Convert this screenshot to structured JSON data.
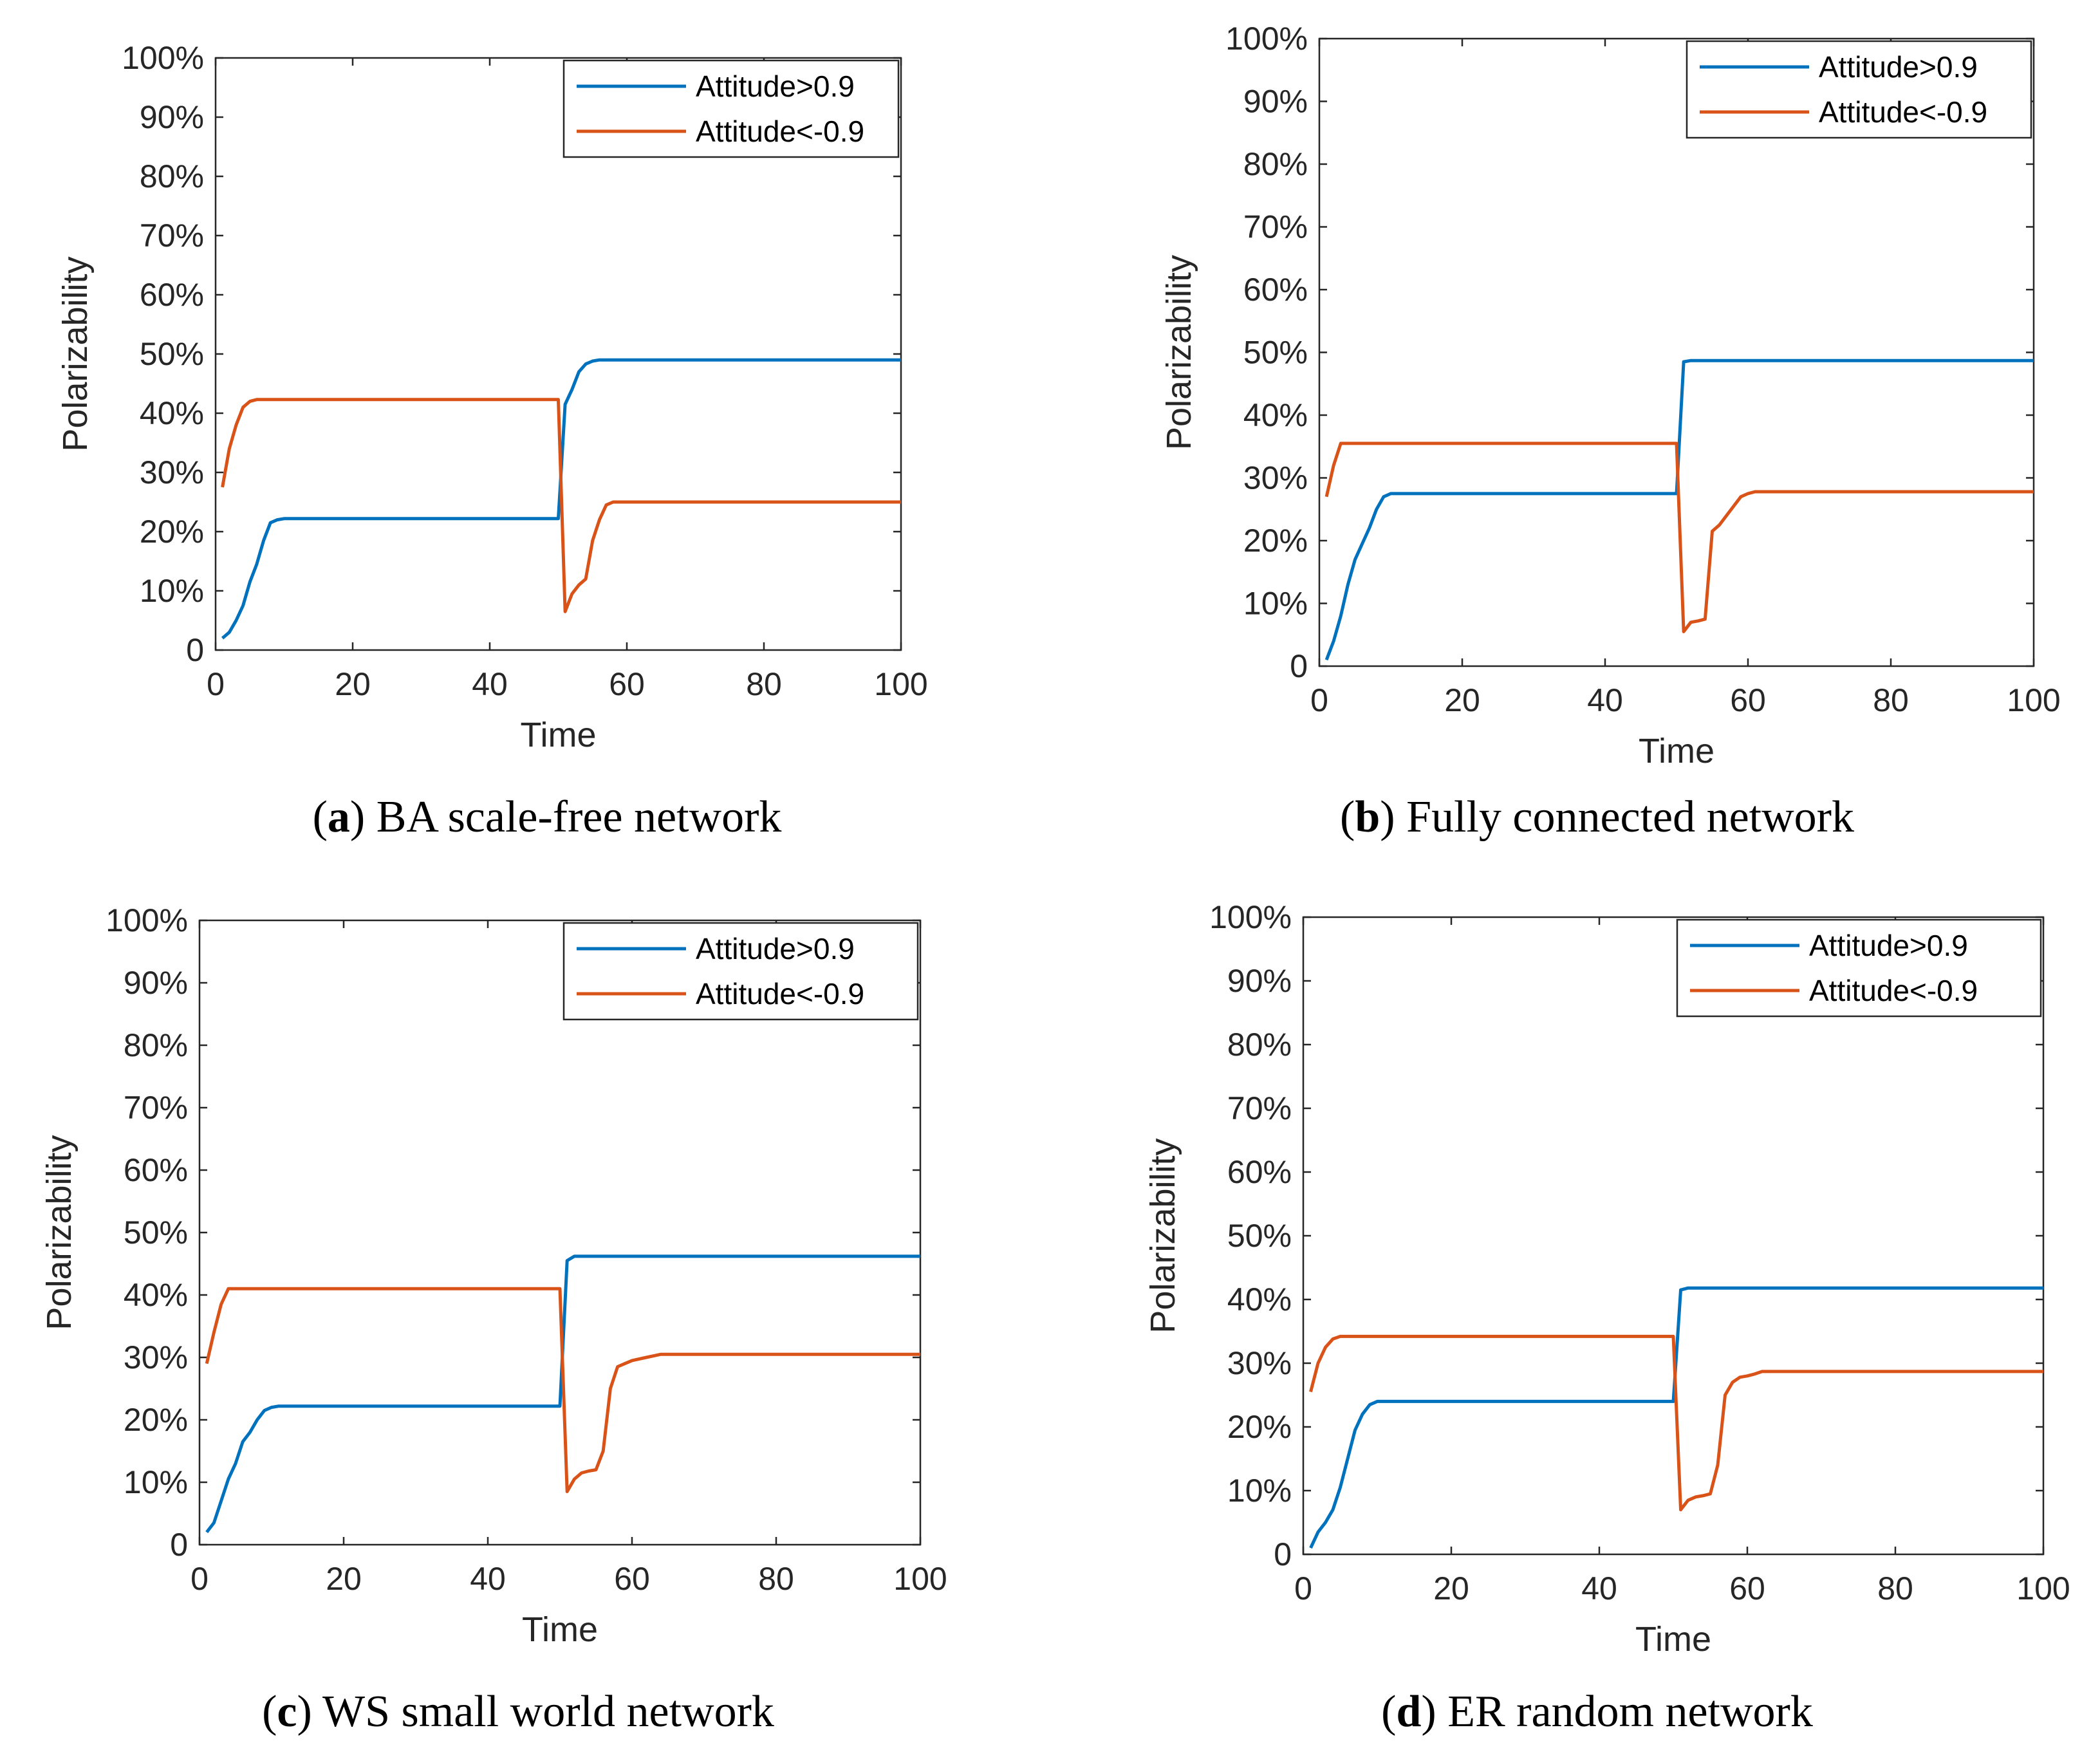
{
  "colors": {
    "series_positive": "#0072BD",
    "series_negative": "#D95319"
  },
  "chart_data": [
    {
      "type": "line",
      "panel_letter": "a",
      "caption": "BA scale-free network",
      "xlabel": "Time",
      "ylabel": "Polarizability",
      "xlim": [
        0,
        100
      ],
      "ylim": [
        0,
        100
      ],
      "x_ticks": [
        "0",
        "20",
        "40",
        "60",
        "80",
        "100"
      ],
      "y_ticks": [
        "0",
        "10%",
        "20%",
        "30%",
        "40%",
        "50%",
        "60%",
        "70%",
        "80%",
        "90%",
        "100%"
      ],
      "legend_position": "top-right",
      "series": [
        {
          "name": "Attitude>0.9",
          "color_key": "series_positive",
          "x": [
            1,
            2,
            3,
            4,
            5,
            6,
            7,
            8,
            9,
            10,
            15,
            20,
            30,
            40,
            50,
            51,
            52,
            53,
            54,
            55,
            56,
            58,
            60,
            80,
            100
          ],
          "y": [
            2,
            3,
            5,
            7.5,
            11.5,
            14.5,
            18.5,
            21.5,
            22,
            22.2,
            22.2,
            22.2,
            22.2,
            22.2,
            22.2,
            41.5,
            44,
            47,
            48.3,
            48.8,
            49,
            49,
            49,
            49,
            49
          ]
        },
        {
          "name": "Attitude<-0.9",
          "color_key": "series_negative",
          "x": [
            1,
            2,
            3,
            4,
            5,
            6,
            8,
            10,
            20,
            30,
            40,
            50,
            51,
            52,
            53,
            54,
            55,
            56,
            57,
            58,
            60,
            80,
            100
          ],
          "y": [
            27.5,
            34,
            38,
            41,
            42,
            42.3,
            42.3,
            42.3,
            42.3,
            42.3,
            42.3,
            42.3,
            6.5,
            9.5,
            11,
            12,
            18.5,
            22,
            24.5,
            25,
            25,
            25,
            25
          ]
        }
      ]
    },
    {
      "type": "line",
      "panel_letter": "b",
      "caption": "Fully connected network",
      "xlabel": "Time",
      "ylabel": "Polarizability",
      "xlim": [
        0,
        100
      ],
      "ylim": [
        0,
        100
      ],
      "x_ticks": [
        "0",
        "20",
        "40",
        "60",
        "80",
        "100"
      ],
      "y_ticks": [
        "0",
        "10%",
        "20%",
        "30%",
        "40%",
        "50%",
        "60%",
        "70%",
        "80%",
        "90%",
        "100%"
      ],
      "legend_position": "top-right",
      "series": [
        {
          "name": "Attitude>0.9",
          "color_key": "series_positive",
          "x": [
            1,
            2,
            3,
            4,
            5,
            6,
            7,
            8,
            9,
            10,
            20,
            30,
            40,
            50,
            51,
            52,
            60,
            80,
            100
          ],
          "y": [
            1,
            4,
            8,
            13,
            17,
            19.5,
            22,
            25,
            27,
            27.5,
            27.5,
            27.5,
            27.5,
            27.5,
            48.5,
            48.7,
            48.7,
            48.7,
            48.7
          ]
        },
        {
          "name": "Attitude<-0.9",
          "color_key": "series_negative",
          "x": [
            1,
            2,
            3,
            4,
            10,
            20,
            30,
            40,
            50,
            51,
            52,
            53,
            54,
            55,
            56,
            57,
            58,
            59,
            60,
            61,
            62,
            80,
            100
          ],
          "y": [
            27,
            32,
            35.5,
            35.5,
            35.5,
            35.5,
            35.5,
            35.5,
            35.5,
            5.5,
            7,
            7.2,
            7.5,
            21.5,
            22.5,
            24,
            25.5,
            27,
            27.5,
            27.8,
            27.8,
            27.8,
            27.8
          ]
        }
      ]
    },
    {
      "type": "line",
      "panel_letter": "c",
      "caption": "WS small world network",
      "xlabel": "Time",
      "ylabel": "Polarizability",
      "xlim": [
        0,
        100
      ],
      "ylim": [
        0,
        100
      ],
      "x_ticks": [
        "0",
        "20",
        "40",
        "60",
        "80",
        "100"
      ],
      "y_ticks": [
        "0",
        "10%",
        "20%",
        "30%",
        "40%",
        "50%",
        "60%",
        "70%",
        "80%",
        "90%",
        "100%"
      ],
      "legend_position": "top-right",
      "series": [
        {
          "name": "Attitude>0.9",
          "color_key": "series_positive",
          "x": [
            1,
            2,
            3,
            4,
            5,
            6,
            7,
            8,
            9,
            10,
            11,
            20,
            30,
            40,
            50,
            51,
            52,
            60,
            80,
            100
          ],
          "y": [
            2,
            3.5,
            7,
            10.5,
            13,
            16.5,
            18,
            20,
            21.5,
            22,
            22.2,
            22.2,
            22.2,
            22.2,
            22.2,
            45.5,
            46.2,
            46.2,
            46.2,
            46.2
          ]
        },
        {
          "name": "Attitude<-0.9",
          "color_key": "series_negative",
          "x": [
            1,
            2,
            3,
            4,
            5,
            10,
            20,
            30,
            40,
            50,
            51,
            52,
            53,
            54,
            55,
            56,
            57,
            58,
            59,
            60,
            62,
            64,
            80,
            100
          ],
          "y": [
            29,
            34,
            38.5,
            41,
            41,
            41,
            41,
            41,
            41,
            41,
            8.5,
            10.5,
            11.5,
            11.8,
            12,
            15,
            25,
            28.5,
            29,
            29.5,
            30,
            30.5,
            30.5,
            30.5
          ]
        }
      ]
    },
    {
      "type": "line",
      "panel_letter": "d",
      "caption": "ER random network",
      "xlabel": "Time",
      "ylabel": "Polarizability",
      "xlim": [
        0,
        100
      ],
      "ylim": [
        0,
        100
      ],
      "x_ticks": [
        "0",
        "20",
        "40",
        "60",
        "80",
        "100"
      ],
      "y_ticks": [
        "0",
        "10%",
        "20%",
        "30%",
        "40%",
        "50%",
        "60%",
        "70%",
        "80%",
        "90%",
        "100%"
      ],
      "legend_position": "top-right",
      "series": [
        {
          "name": "Attitude>0.9",
          "color_key": "series_positive",
          "x": [
            1,
            2,
            3,
            4,
            5,
            6,
            7,
            8,
            9,
            10,
            20,
            30,
            40,
            50,
            51,
            52,
            60,
            80,
            100
          ],
          "y": [
            1,
            3.5,
            5,
            7,
            10.5,
            15,
            19.5,
            22,
            23.5,
            24,
            24,
            24,
            24,
            24,
            41.5,
            41.8,
            41.8,
            41.8,
            41.8
          ]
        },
        {
          "name": "Attitude<-0.9",
          "color_key": "series_negative",
          "x": [
            1,
            2,
            3,
            4,
            5,
            6,
            10,
            20,
            30,
            40,
            50,
            51,
            52,
            53,
            54,
            55,
            56,
            57,
            58,
            59,
            60,
            61,
            62,
            80,
            100
          ],
          "y": [
            25.5,
            30,
            32.5,
            33.8,
            34.2,
            34.2,
            34.2,
            34.2,
            34.2,
            34.2,
            34.2,
            7,
            8.5,
            9,
            9.2,
            9.5,
            14,
            25,
            27,
            27.8,
            28,
            28.3,
            28.7,
            28.7,
            28.7
          ]
        }
      ]
    }
  ]
}
